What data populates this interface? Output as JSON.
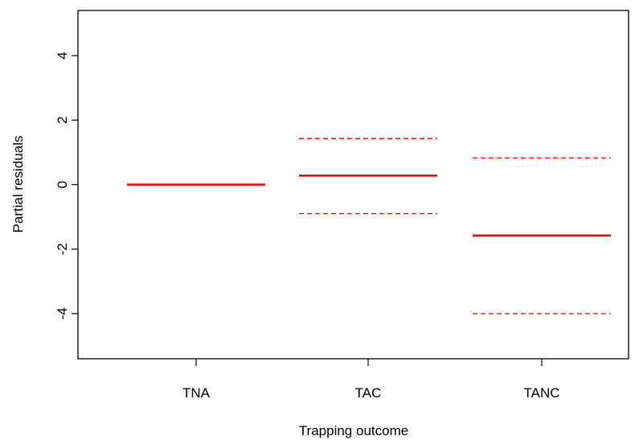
{
  "chart_data": {
    "type": "termplot",
    "xlabel": "Trapping outcome",
    "ylabel": "Partial residuals",
    "ylim": [
      -5.4,
      5.4
    ],
    "yticks": [
      -4,
      -2,
      0,
      2,
      4
    ],
    "ytick_labels": [
      "-4",
      "-2",
      "0",
      "2",
      "4"
    ],
    "categories": [
      "TNA",
      "TAC",
      "TANC"
    ],
    "estimates": [
      0.0,
      0.28,
      -1.58
    ],
    "upper": [
      null,
      1.43,
      0.83
    ],
    "lower": [
      null,
      -0.9,
      -4.0
    ],
    "colors": {
      "line": "#ff0000",
      "axis": "#000000"
    }
  }
}
